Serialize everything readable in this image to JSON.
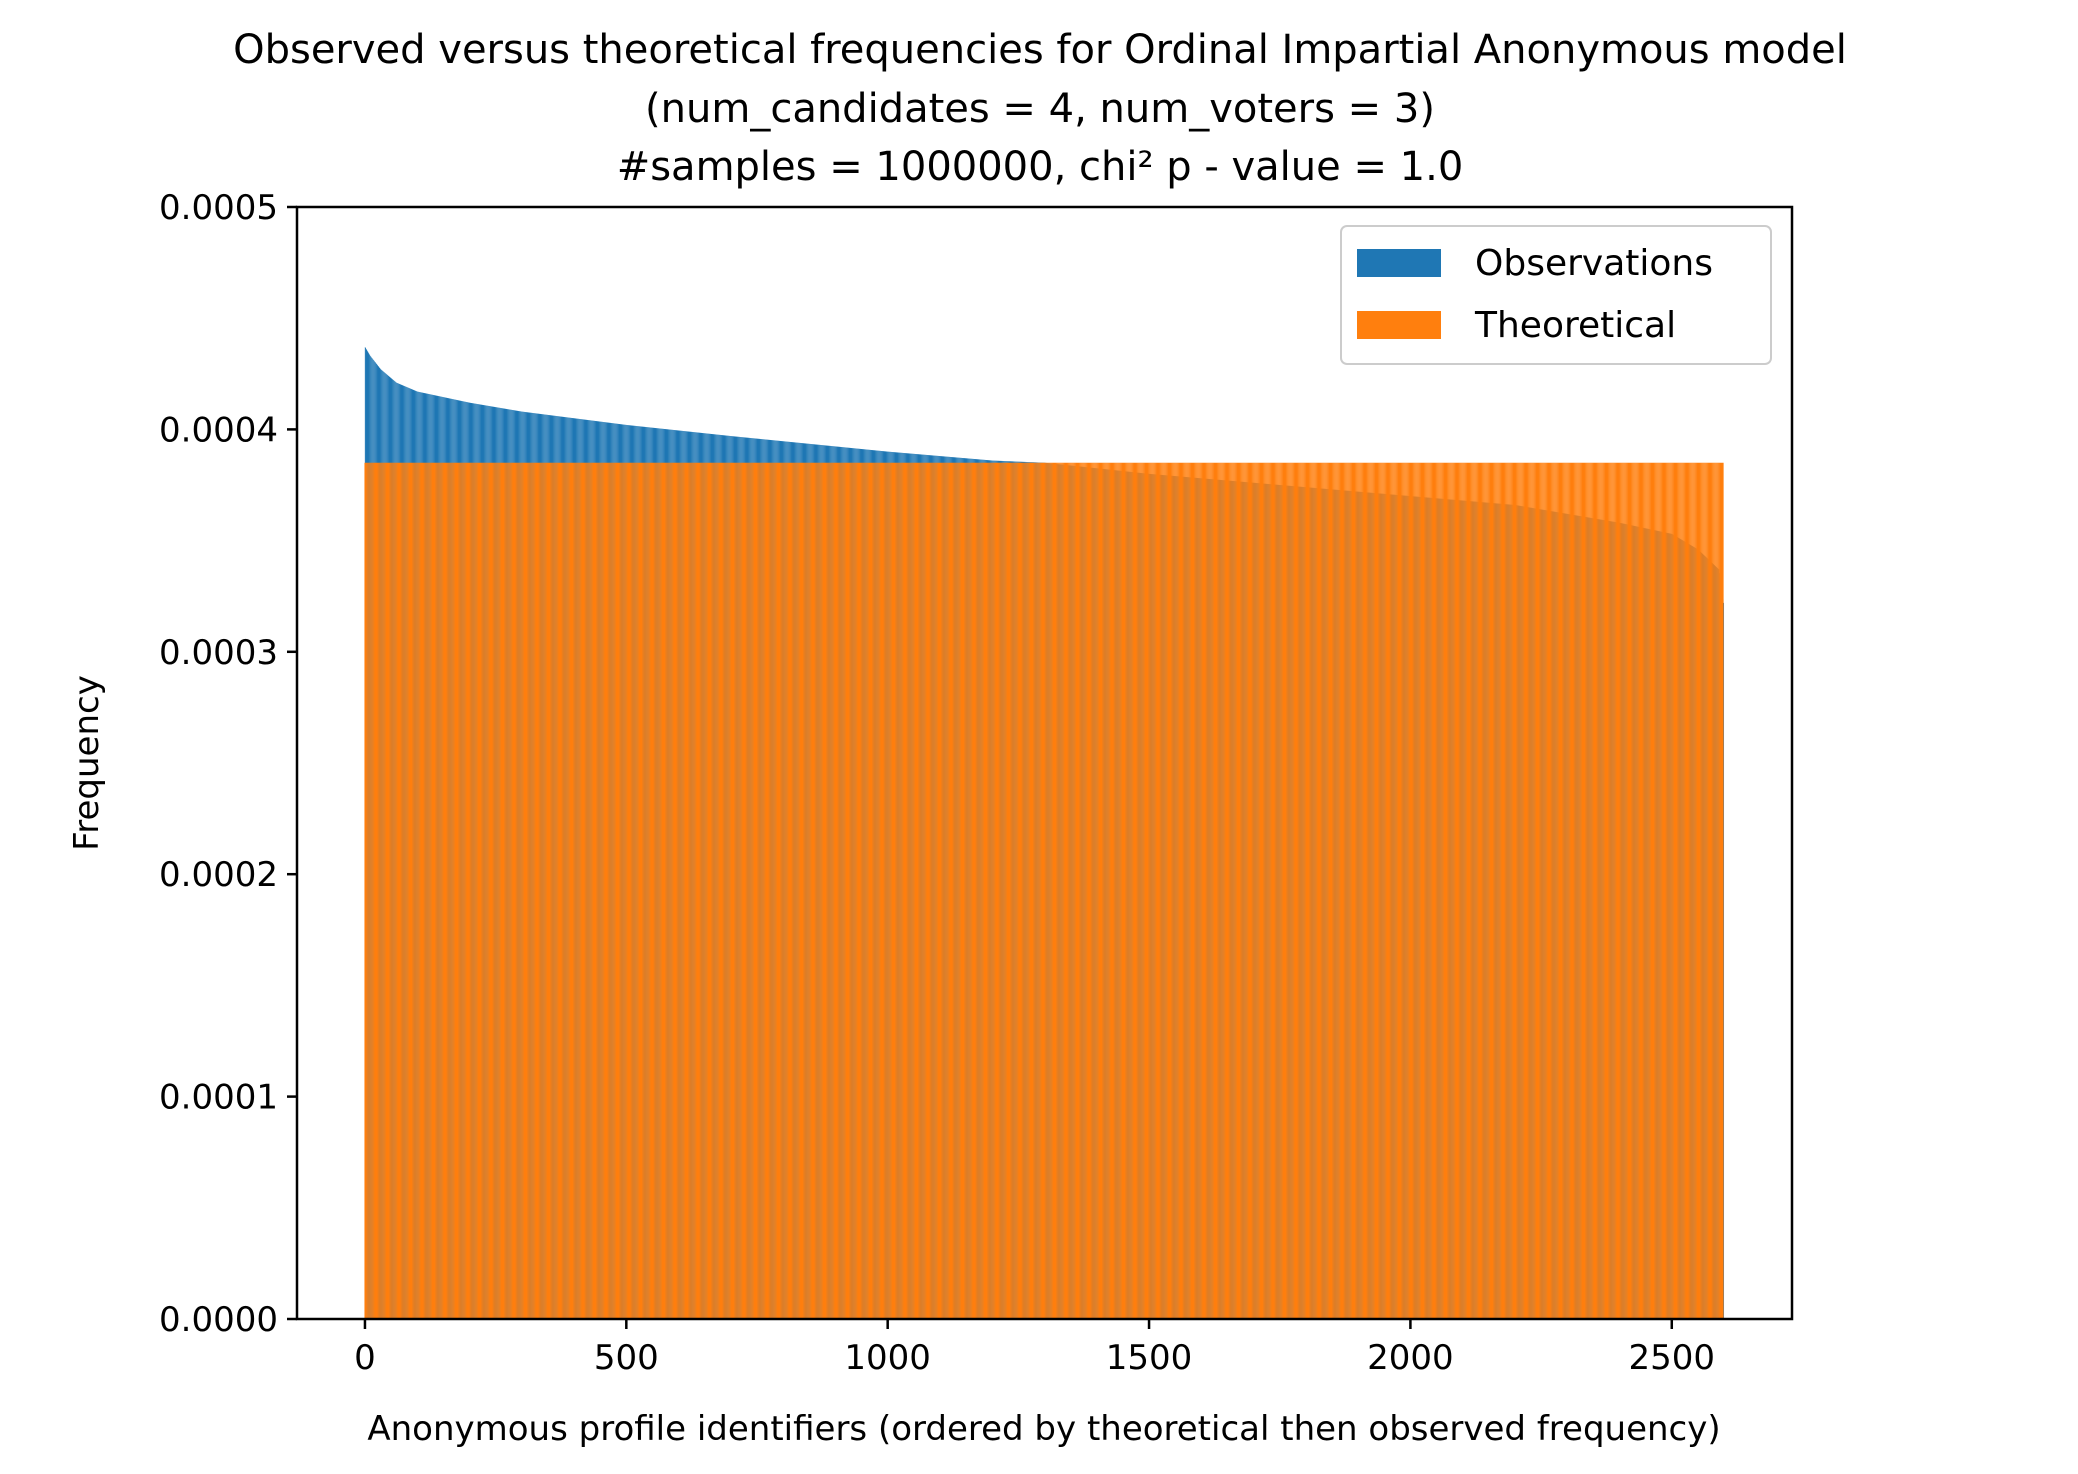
{
  "chart_data": {
    "type": "bar",
    "title": [
      "Observed versus theoretical frequencies for Ordinal Impartial Anonymous model",
      "(num_candidates = 4, num_voters = 3)",
      "#samples = 1000000, chi² p - value = 1.0"
    ],
    "xlabel": "Anonymous profile identifiers (ordered by theoretical then observed frequency)",
    "ylabel": "Frequency",
    "xlim": [
      -130,
      2730
    ],
    "ylim": [
      0,
      0.0005
    ],
    "xticks": [
      0,
      500,
      1000,
      1500,
      2000,
      2500
    ],
    "xtick_labels": [
      "0",
      "500",
      "1000",
      "1500",
      "2000",
      "2500"
    ],
    "yticks": [
      0,
      0.0001,
      0.0002,
      0.0003,
      0.0004,
      0.0005
    ],
    "ytick_labels": [
      "0.0000",
      "0.0001",
      "0.0002",
      "0.0003",
      "0.0004",
      "0.0005"
    ],
    "legend_position": "top-right",
    "grid": false,
    "num_profiles": 2600,
    "series": [
      {
        "name": "Observations",
        "color": "#1f77b4",
        "description": "observed frequency per profile, sorted descending",
        "curve_x": [
          0,
          10,
          30,
          60,
          100,
          200,
          300,
          500,
          700,
          1000,
          1200,
          1300,
          1500,
          1700,
          2000,
          2200,
          2400,
          2500,
          2550,
          2590,
          2599
        ],
        "curve_y": [
          0.000437,
          0.000433,
          0.000427,
          0.000421,
          0.000417,
          0.000412,
          0.000408,
          0.000402,
          0.000397,
          0.00039,
          0.000386,
          0.000385,
          0.00038,
          0.000376,
          0.00037,
          0.000366,
          0.000358,
          0.000353,
          0.000346,
          0.000337,
          0.000322
        ]
      },
      {
        "name": "Theoretical",
        "color": "#ff7f0e",
        "description": "uniform theoretical frequency",
        "value": 0.000385
      }
    ]
  }
}
